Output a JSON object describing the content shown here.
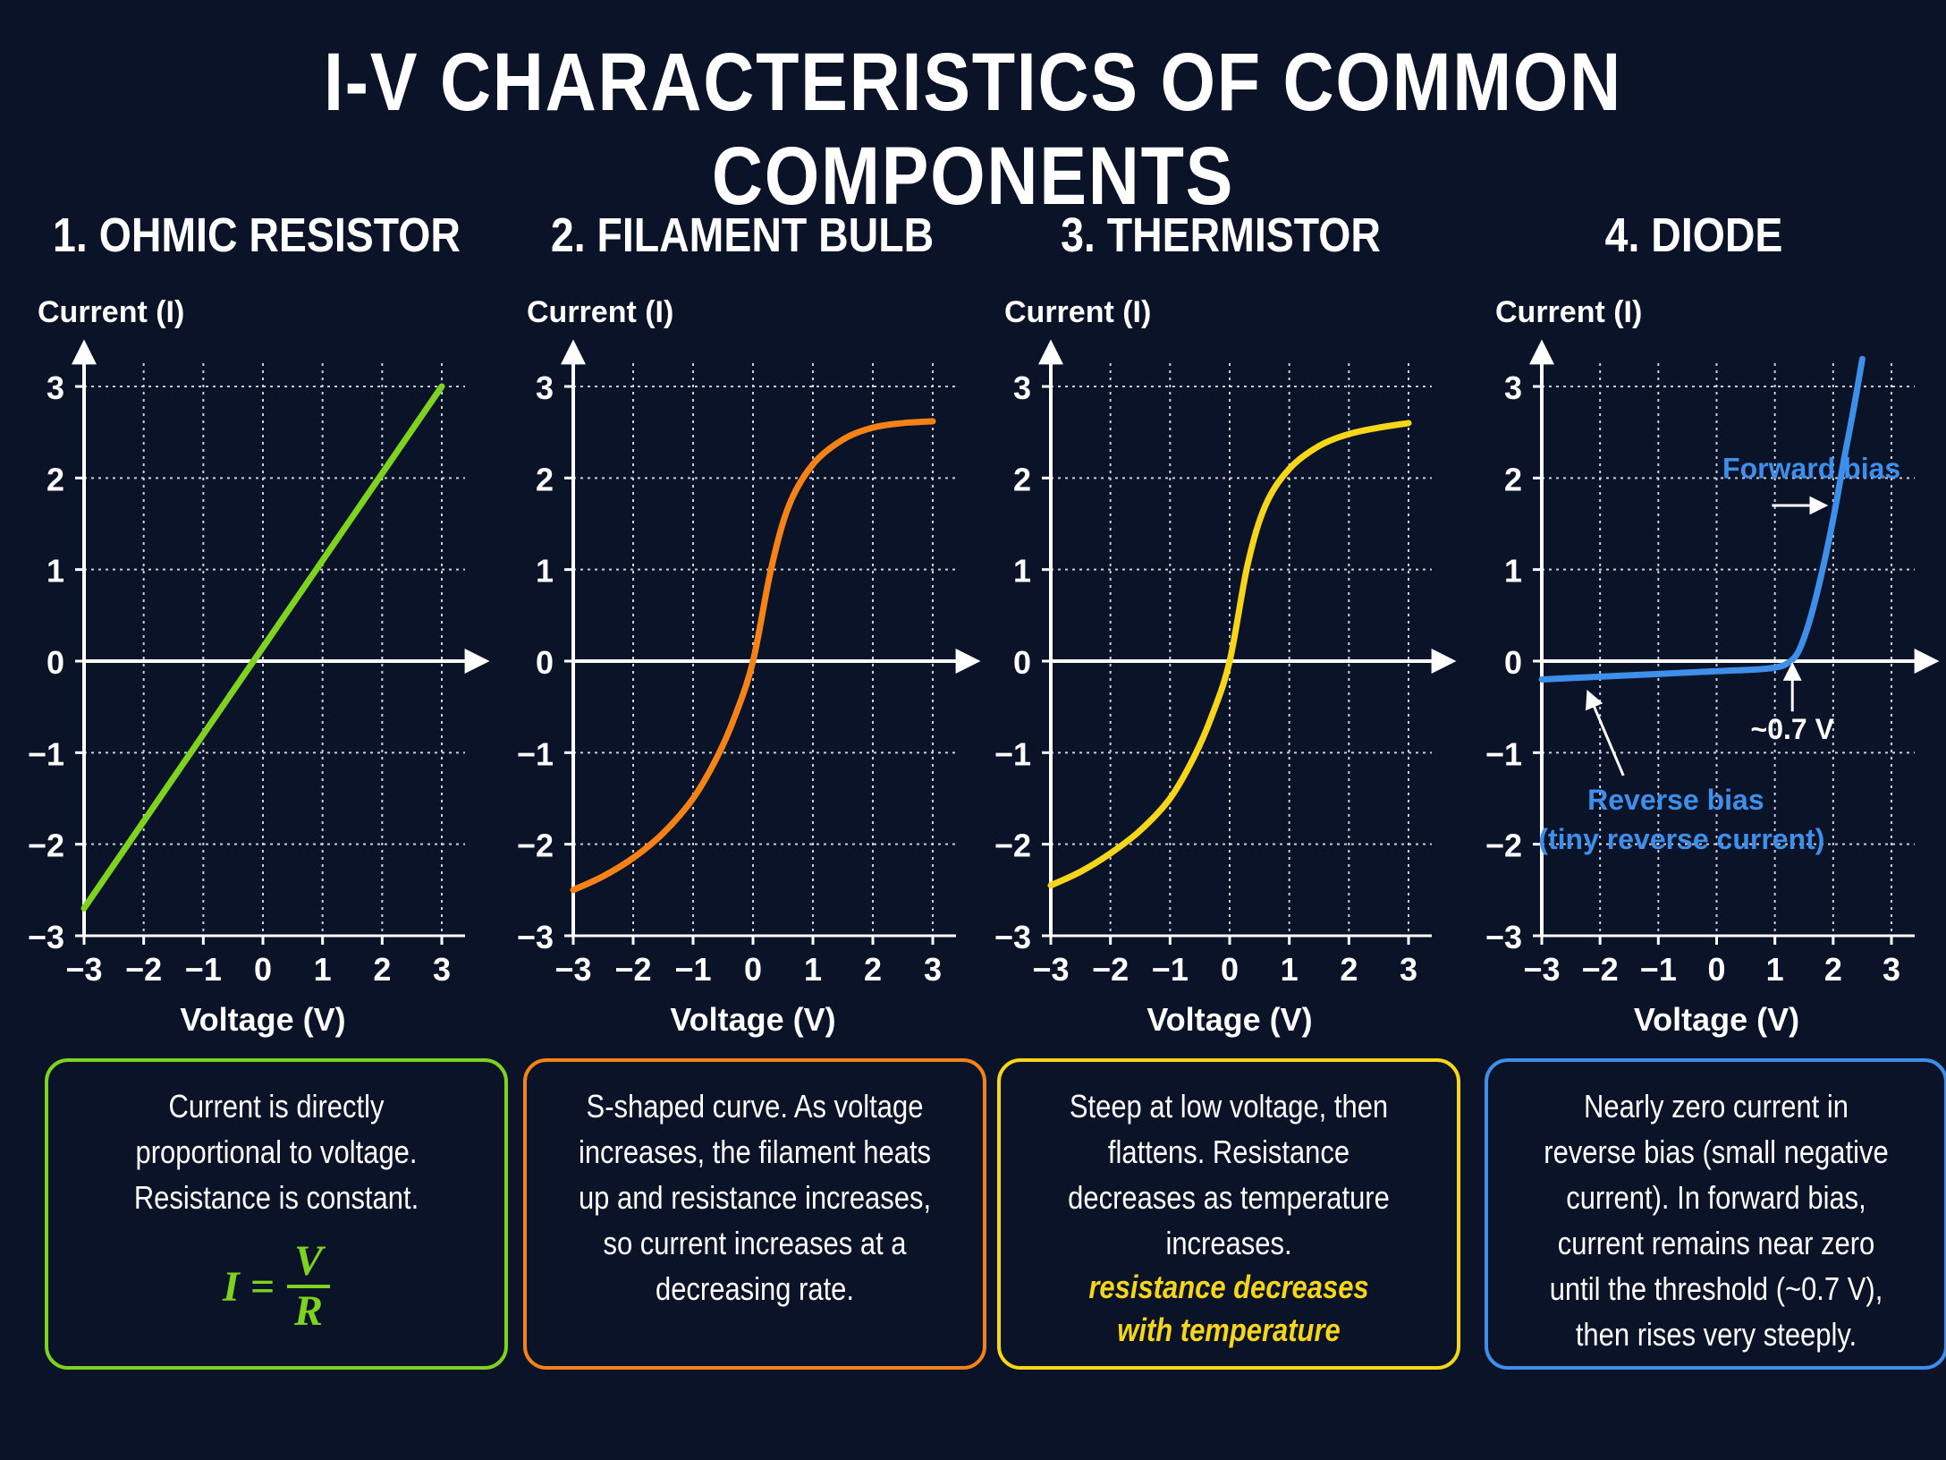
{
  "title": "I-V CHARACTERISTICS OF COMMON COMPONENTS",
  "chart_data": [
    {
      "type": "line",
      "title": "1. OHMIC RESISTOR",
      "xlabel": "Voltage (V)",
      "ylabel": "Current (I)",
      "xlim": [
        -3,
        3
      ],
      "ylim": [
        -3,
        3
      ],
      "xticks": [
        "−3",
        "−2",
        "−1",
        "0",
        "1",
        "2",
        "3"
      ],
      "yticks": [
        "3",
        "2",
        "1",
        "0",
        "−1",
        "−2",
        "−3"
      ],
      "grid": true,
      "color": "#7ed321",
      "x": [
        -3,
        3
      ],
      "y": [
        -2.7,
        3.0
      ]
    },
    {
      "type": "line",
      "title": "2. FILAMENT BULB",
      "xlabel": "Voltage (V)",
      "ylabel": "Current (I)",
      "xlim": [
        -3,
        3
      ],
      "ylim": [
        -3,
        3
      ],
      "xticks": [
        "−3",
        "−2",
        "−1",
        "0",
        "1",
        "2",
        "3"
      ],
      "yticks": [
        "3",
        "2",
        "1",
        "0",
        "−1",
        "−2",
        "−3"
      ],
      "grid": true,
      "color": "#f58216",
      "x": [
        -3,
        -2.5,
        -2,
        -1.5,
        -1,
        -0.6,
        -0.3,
        0,
        0.3,
        0.6,
        1,
        1.5,
        2,
        2.5,
        3
      ],
      "y": [
        -2.5,
        -2.35,
        -2.15,
        -1.88,
        -1.5,
        -1.05,
        -0.6,
        0,
        1.0,
        1.7,
        2.15,
        2.42,
        2.55,
        2.6,
        2.62
      ]
    },
    {
      "type": "line",
      "title": "3. THERMISTOR",
      "xlabel": "Voltage (V)",
      "ylabel": "Current (I)",
      "xlim": [
        -3,
        3
      ],
      "ylim": [
        -3,
        3
      ],
      "xticks": [
        "−3",
        "−2",
        "−1",
        "0",
        "1",
        "2",
        "3"
      ],
      "yticks": [
        "3",
        "2",
        "1",
        "0",
        "−1",
        "−2",
        "−3"
      ],
      "grid": true,
      "color": "#f7d61a",
      "x": [
        -3,
        -2.5,
        -2,
        -1.5,
        -1,
        -0.6,
        -0.3,
        0,
        0.3,
        0.6,
        1,
        1.5,
        2,
        2.5,
        3
      ],
      "y": [
        -2.45,
        -2.3,
        -2.1,
        -1.85,
        -1.5,
        -1.05,
        -0.6,
        0,
        1.05,
        1.7,
        2.1,
        2.35,
        2.48,
        2.55,
        2.6
      ]
    },
    {
      "type": "line",
      "title": "4. DIODE",
      "xlabel": "Voltage (V)",
      "ylabel": "Current (I)",
      "xlim": [
        -3,
        3
      ],
      "ylim": [
        -3,
        3
      ],
      "xticks": [
        "−3",
        "−2",
        "−1",
        "0",
        "1",
        "2",
        "3"
      ],
      "yticks": [
        "3",
        "2",
        "1",
        "0",
        "−1",
        "−2",
        "−3"
      ],
      "grid": true,
      "color": "#3d8fea",
      "x": [
        -3,
        -2,
        -1,
        0,
        0.7,
        1.0,
        1.2,
        1.4,
        1.6,
        1.8,
        2.0,
        2.2,
        2.35,
        2.5
      ],
      "y": [
        -0.2,
        -0.17,
        -0.14,
        -0.11,
        -0.09,
        -0.07,
        -0.03,
        0.1,
        0.45,
        0.95,
        1.55,
        2.25,
        2.75,
        3.3
      ],
      "annotations": {
        "forward": "Forward bias",
        "threshold": "~0.7 V",
        "reverse_1": "Reverse bias",
        "reverse_2": "(tiny reverse current)"
      }
    }
  ],
  "descriptions": [
    {
      "color": "#7ed321",
      "text": "Current is directly proportional to voltage. Resistance is constant.",
      "formula": {
        "lhs": "I =",
        "num": "V",
        "den": "R"
      }
    },
    {
      "color": "#f58216",
      "text": "S-shaped curve. As voltage increases, the filament heats up and resistance increases, so current increases at a decreasing rate."
    },
    {
      "color": "#f7d61a",
      "text": "Steep at low voltage, then flattens. Resistance decreases as temperature increases.",
      "note": "resistance decreases with temperature"
    },
    {
      "color": "#3d8fea",
      "text": "Nearly zero current in reverse bias (small negative current). In forward bias, current remains near zero until the threshold (~0.7 V), then rises very steeply."
    }
  ]
}
